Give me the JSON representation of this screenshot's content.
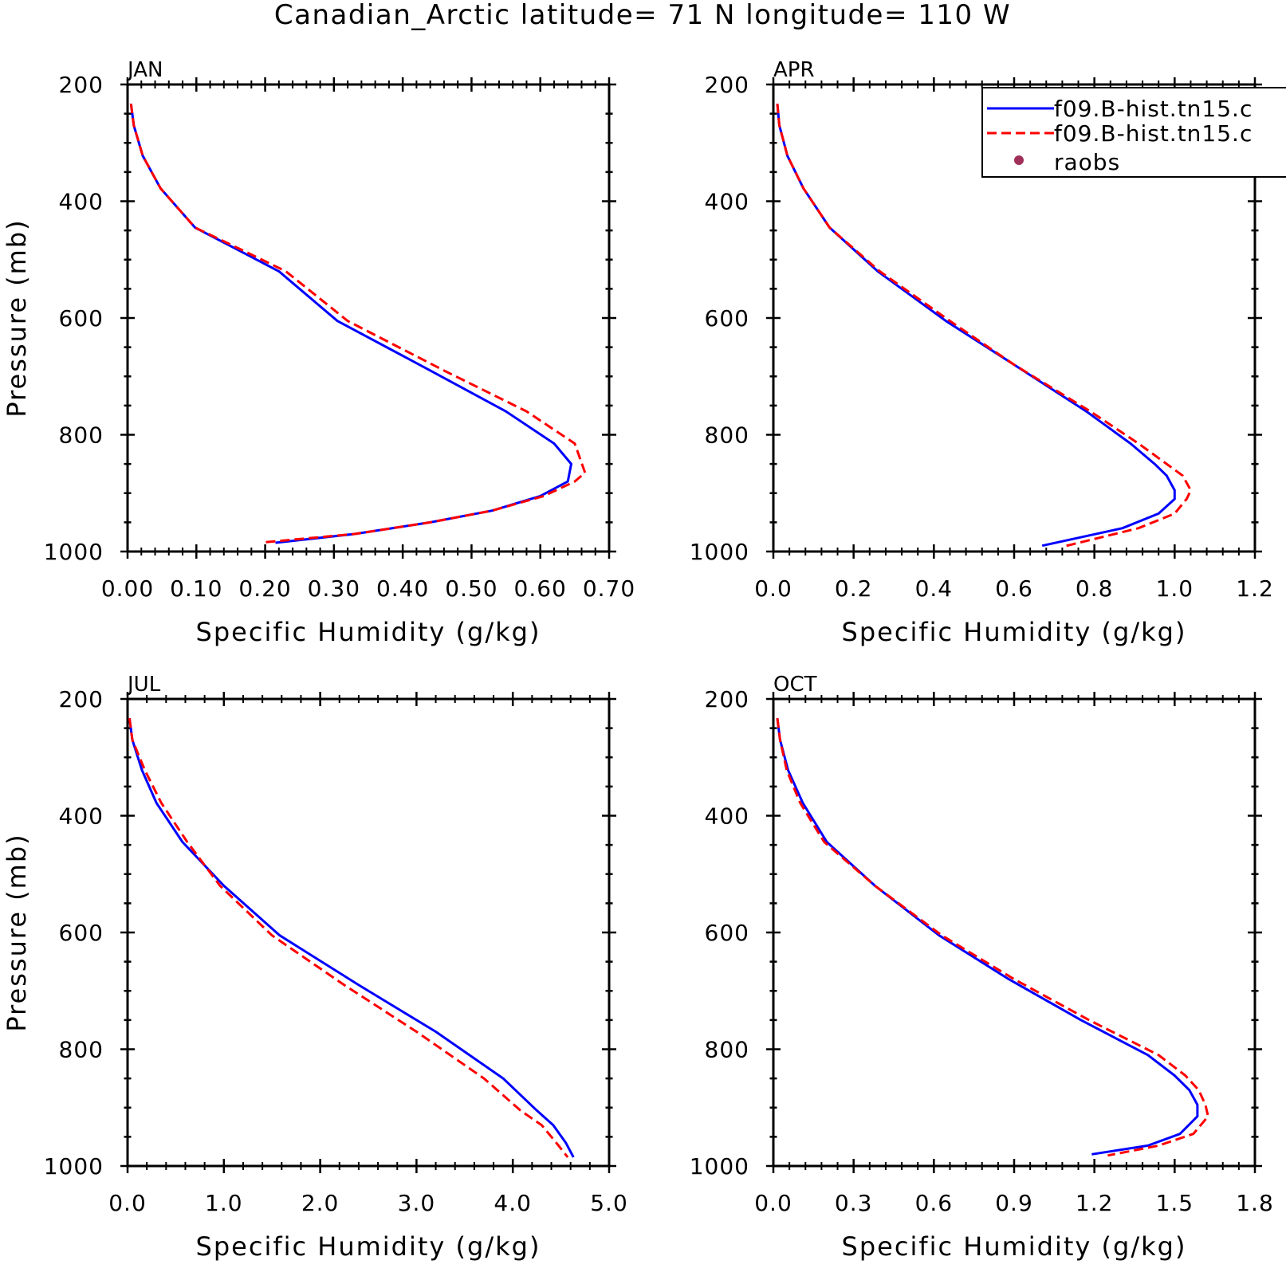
{
  "title": "Canadian_Arctic  latitude= 71 N longitude= 110 W",
  "legend": {
    "entries": [
      {
        "label": "f09.B-hist.tn15.c",
        "color": "#0000ff",
        "style": "solid"
      },
      {
        "label": "f09.B-hist.tn15.c",
        "color": "#ff0000",
        "style": "dashed"
      },
      {
        "label": "raobs",
        "color": "#a0305a",
        "style": "marker"
      }
    ]
  },
  "chart_data": [
    {
      "type": "line",
      "panel": "JAN",
      "xlabel": "Specific Humidity (g/kg)",
      "ylabel": "Pressure (mb)",
      "xlim": [
        0,
        0.7
      ],
      "ylim": [
        1000,
        200
      ],
      "xticks": [
        "0.00",
        "0.10",
        "0.20",
        "0.30",
        "0.40",
        "0.50",
        "0.60",
        "0.70"
      ],
      "xtick_values": [
        0,
        0.1,
        0.2,
        0.3,
        0.4,
        0.5,
        0.6,
        0.7
      ],
      "yticks": [
        "200",
        "400",
        "600",
        "800",
        "1000"
      ],
      "series": [
        {
          "color": "#0000ff",
          "style": "solid",
          "x": [
            0.005,
            0.009,
            0.022,
            0.048,
            0.098,
            0.155,
            0.22,
            0.305,
            0.44,
            0.55,
            0.62,
            0.645,
            0.64,
            0.6,
            0.53,
            0.44,
            0.33,
            0.215
          ],
          "y": [
            233,
            270,
            322,
            378,
            445,
            480,
            520,
            605,
            690,
            760,
            815,
            850,
            880,
            905,
            930,
            950,
            970,
            985
          ]
        },
        {
          "color": "#ff0000",
          "style": "dashed",
          "x": [
            0.005,
            0.009,
            0.022,
            0.048,
            0.098,
            0.16,
            0.23,
            0.32,
            0.46,
            0.58,
            0.65,
            0.665,
            0.65,
            0.605,
            0.53,
            0.44,
            0.33,
            0.2
          ],
          "y": [
            233,
            270,
            322,
            378,
            445,
            480,
            520,
            605,
            690,
            760,
            815,
            865,
            880,
            905,
            930,
            950,
            970,
            984
          ]
        }
      ]
    },
    {
      "type": "line",
      "panel": "APR",
      "xlabel": "Specific Humidity (g/kg)",
      "ylabel": "",
      "xlim": [
        0,
        1.2
      ],
      "ylim": [
        1000,
        200
      ],
      "xticks": [
        "0.0",
        "0.2",
        "0.4",
        "0.6",
        "0.8",
        "1.0",
        "1.2"
      ],
      "xtick_values": [
        0,
        0.2,
        0.4,
        0.6,
        0.8,
        1.0,
        1.2
      ],
      "yticks": [
        "200",
        "400",
        "600",
        "800",
        "1000"
      ],
      "series": [
        {
          "color": "#0000ff",
          "style": "solid",
          "x": [
            0.01,
            0.015,
            0.035,
            0.075,
            0.14,
            0.26,
            0.43,
            0.6,
            0.78,
            0.89,
            0.95,
            0.98,
            1.0,
            1.0,
            0.96,
            0.87,
            0.67
          ],
          "y": [
            233,
            270,
            322,
            378,
            445,
            520,
            605,
            680,
            760,
            815,
            850,
            870,
            895,
            910,
            935,
            960,
            990
          ]
        },
        {
          "color": "#ff0000",
          "style": "dashed",
          "x": [
            0.01,
            0.015,
            0.035,
            0.075,
            0.14,
            0.265,
            0.44,
            0.6,
            0.79,
            0.91,
            0.98,
            1.02,
            1.04,
            1.03,
            1.0,
            0.91,
            0.72
          ],
          "y": [
            233,
            270,
            322,
            378,
            445,
            520,
            605,
            680,
            760,
            815,
            850,
            870,
            895,
            910,
            935,
            960,
            992
          ]
        }
      ]
    },
    {
      "type": "line",
      "panel": "JUL",
      "xlabel": "Specific Humidity (g/kg)",
      "ylabel": "Pressure (mb)",
      "xlim": [
        0,
        5
      ],
      "ylim": [
        1000,
        200
      ],
      "xticks": [
        "0.0",
        "1.0",
        "2.0",
        "3.0",
        "4.0",
        "5.0"
      ],
      "xtick_values": [
        0,
        1,
        2,
        3,
        4,
        5
      ],
      "yticks": [
        "200",
        "400",
        "600",
        "800",
        "1000"
      ],
      "series": [
        {
          "color": "#0000ff",
          "style": "solid",
          "x": [
            0.02,
            0.05,
            0.15,
            0.3,
            0.57,
            1.0,
            1.58,
            2.4,
            3.2,
            3.9,
            4.25,
            4.42,
            4.55,
            4.63
          ],
          "y": [
            233,
            270,
            322,
            378,
            445,
            520,
            605,
            690,
            770,
            850,
            905,
            930,
            960,
            985
          ]
        },
        {
          "color": "#ff0000",
          "style": "dashed",
          "x": [
            0.02,
            0.05,
            0.18,
            0.35,
            0.62,
            0.96,
            1.5,
            2.25,
            3.0,
            3.7,
            4.08,
            4.3,
            4.45,
            4.57
          ],
          "y": [
            233,
            270,
            322,
            378,
            445,
            520,
            605,
            690,
            770,
            850,
            905,
            930,
            960,
            985
          ]
        }
      ]
    },
    {
      "type": "line",
      "panel": "OCT",
      "xlabel": "Specific Humidity (g/kg)",
      "ylabel": "",
      "xlim": [
        0,
        1.8
      ],
      "ylim": [
        1000,
        200
      ],
      "xticks": [
        "0.0",
        "0.3",
        "0.6",
        "0.9",
        "1.2",
        "1.5",
        "1.8"
      ],
      "xtick_values": [
        0,
        0.3,
        0.6,
        0.9,
        1.2,
        1.5,
        1.8
      ],
      "yticks": [
        "200",
        "400",
        "600",
        "800",
        "1000"
      ],
      "series": [
        {
          "color": "#0000ff",
          "style": "solid",
          "x": [
            0.015,
            0.025,
            0.055,
            0.11,
            0.2,
            0.38,
            0.62,
            0.88,
            1.15,
            1.4,
            1.5,
            1.555,
            1.585,
            1.585,
            1.52,
            1.4,
            1.19
          ],
          "y": [
            233,
            270,
            322,
            378,
            445,
            520,
            605,
            680,
            750,
            810,
            845,
            870,
            895,
            915,
            945,
            965,
            980
          ]
        },
        {
          "color": "#ff0000",
          "style": "dashed",
          "x": [
            0.015,
            0.025,
            0.05,
            0.1,
            0.19,
            0.38,
            0.63,
            0.9,
            1.18,
            1.44,
            1.54,
            1.59,
            1.615,
            1.625,
            1.57,
            1.44,
            1.25
          ],
          "y": [
            233,
            270,
            322,
            378,
            445,
            520,
            605,
            680,
            750,
            810,
            845,
            870,
            895,
            915,
            945,
            965,
            982
          ]
        }
      ]
    }
  ]
}
